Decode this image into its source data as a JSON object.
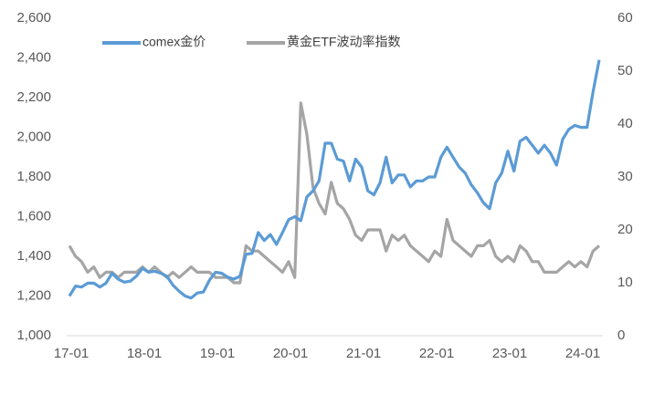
{
  "chart_data": {
    "type": "line",
    "categories": [
      "17-01",
      null,
      null,
      null,
      null,
      null,
      null,
      null,
      null,
      null,
      null,
      null,
      "18-01",
      null,
      null,
      null,
      null,
      null,
      null,
      null,
      null,
      null,
      null,
      null,
      "19-01",
      null,
      null,
      null,
      null,
      null,
      null,
      null,
      null,
      null,
      null,
      null,
      "20-01",
      null,
      null,
      null,
      null,
      null,
      null,
      null,
      null,
      null,
      null,
      null,
      "21-01",
      null,
      null,
      null,
      null,
      null,
      null,
      null,
      null,
      null,
      null,
      null,
      "22-01",
      null,
      null,
      null,
      null,
      null,
      null,
      null,
      null,
      null,
      null,
      null,
      "23-01",
      null,
      null,
      null,
      null,
      null,
      null,
      null,
      null,
      null,
      null,
      null,
      "24-01",
      null,
      null,
      null
    ],
    "series": [
      {
        "name": "comex金价",
        "color": "#5b9bd5",
        "axis": "y",
        "values": [
          1200,
          1250,
          1245,
          1265,
          1265,
          1245,
          1265,
          1315,
          1285,
          1270,
          1275,
          1300,
          1340,
          1320,
          1325,
          1315,
          1300,
          1255,
          1225,
          1200,
          1190,
          1215,
          1220,
          1280,
          1320,
          1315,
          1295,
          1285,
          1300,
          1410,
          1415,
          1520,
          1480,
          1510,
          1460,
          1520,
          1585,
          1600,
          1580,
          1700,
          1730,
          1780,
          1970,
          1970,
          1890,
          1880,
          1780,
          1890,
          1850,
          1730,
          1710,
          1770,
          1900,
          1770,
          1810,
          1810,
          1750,
          1780,
          1780,
          1800,
          1800,
          1900,
          1950,
          1900,
          1850,
          1820,
          1760,
          1720,
          1670,
          1640,
          1770,
          1820,
          1930,
          1830,
          1980,
          2000,
          1960,
          1920,
          1960,
          1920,
          1860,
          1990,
          2040,
          2060,
          2050,
          2050,
          2230,
          2390
        ]
      },
      {
        "name": "黄金ETF波动率指数",
        "color": "#a5a5a5",
        "axis": "y2",
        "values": [
          17,
          15,
          14,
          12,
          13,
          11,
          12,
          12,
          11,
          12,
          12,
          12,
          13,
          12,
          13,
          12,
          11,
          12,
          11,
          12,
          13,
          12,
          12,
          12,
          11,
          11,
          11,
          10,
          10,
          17,
          16,
          16,
          15,
          14,
          13,
          12,
          14,
          11,
          44,
          38,
          28,
          25,
          23,
          29,
          25,
          24,
          22,
          19,
          18,
          20,
          20,
          20,
          16,
          19,
          18,
          19,
          17,
          16,
          15,
          14,
          16,
          15,
          22,
          18,
          17,
          16,
          15,
          17,
          17,
          18,
          15,
          14,
          15,
          14,
          17,
          16,
          14,
          14,
          12,
          12,
          12,
          13,
          14,
          13,
          14,
          13,
          16,
          17
        ]
      }
    ],
    "ylim": [
      1000,
      2600
    ],
    "yticks": [
      {
        "value": 1000,
        "label": "1,000"
      },
      {
        "value": 1200,
        "label": "1,200"
      },
      {
        "value": 1400,
        "label": "1,400"
      },
      {
        "value": 1600,
        "label": "1,600"
      },
      {
        "value": 1800,
        "label": "1,800"
      },
      {
        "value": 2000,
        "label": "2,000"
      },
      {
        "value": 2200,
        "label": "2,200"
      },
      {
        "value": 2400,
        "label": "2,400"
      },
      {
        "value": 2600,
        "label": "2,600"
      }
    ],
    "y2lim": [
      0,
      60
    ],
    "y2ticks": [
      0,
      10,
      20,
      30,
      40,
      50,
      60
    ],
    "legend": "top"
  }
}
